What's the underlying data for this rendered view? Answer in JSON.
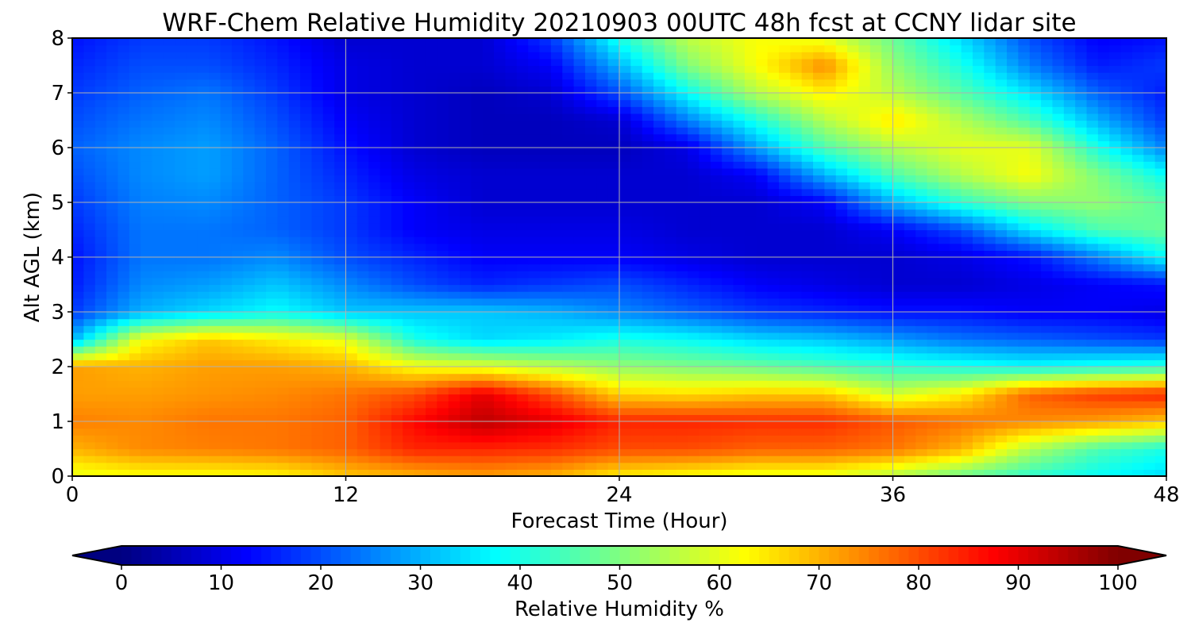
{
  "chart_data": {
    "type": "heatmap",
    "title": "WRF-Chem Relative Humidity 20210903 00UTC 48h fcst at CCNY lidar site",
    "xlabel": "Forecast Time (Hour)",
    "ylabel": "Alt AGL (km)",
    "xlim": [
      0,
      48
    ],
    "ylim": [
      0,
      8
    ],
    "x_ticks": [
      "0",
      "12",
      "24",
      "36",
      "48"
    ],
    "y_ticks": [
      "0",
      "1",
      "2",
      "3",
      "4",
      "5",
      "6",
      "7",
      "8"
    ],
    "grid": true,
    "colorbar": {
      "label": "Relative Humidity %",
      "range": [
        0,
        100
      ],
      "ticks": [
        "0",
        "10",
        "20",
        "30",
        "40",
        "50",
        "60",
        "70",
        "80",
        "90",
        "100"
      ],
      "extend": "both",
      "colormap": "jet"
    },
    "x": [
      0,
      3,
      6,
      9,
      12,
      15,
      18,
      21,
      24,
      27,
      30,
      33,
      36,
      39,
      42,
      45,
      48
    ],
    "y": [
      0,
      0.5,
      1,
      1.5,
      2,
      2.5,
      3,
      3.5,
      4,
      4.5,
      5,
      5.5,
      6,
      6.5,
      7,
      7.5,
      8
    ],
    "values": [
      [
        60,
        62,
        62,
        63,
        68,
        70,
        72,
        70,
        64,
        62,
        60,
        60,
        55,
        48,
        42,
        38,
        34
      ],
      [
        70,
        74,
        75,
        76,
        78,
        84,
        84,
        83,
        80,
        80,
        78,
        78,
        76,
        70,
        55,
        45,
        40
      ],
      [
        75,
        74,
        76,
        76,
        78,
        87,
        94,
        90,
        84,
        84,
        83,
        83,
        79,
        76,
        74,
        72,
        68
      ],
      [
        72,
        72,
        73,
        74,
        76,
        80,
        90,
        80,
        67,
        66,
        68,
        68,
        58,
        64,
        78,
        82,
        84
      ],
      [
        72,
        70,
        72,
        72,
        70,
        62,
        60,
        56,
        52,
        50,
        48,
        45,
        42,
        40,
        38,
        40,
        42
      ],
      [
        30,
        62,
        68,
        64,
        60,
        40,
        34,
        36,
        40,
        38,
        34,
        32,
        28,
        24,
        22,
        20,
        18
      ],
      [
        18,
        30,
        34,
        38,
        32,
        32,
        32,
        30,
        26,
        22,
        18,
        16,
        14,
        14,
        12,
        12,
        10
      ],
      [
        15,
        26,
        28,
        32,
        26,
        20,
        16,
        18,
        20,
        16,
        12,
        10,
        8,
        8,
        10,
        12,
        14
      ],
      [
        14,
        24,
        24,
        26,
        20,
        16,
        12,
        12,
        12,
        10,
        8,
        8,
        8,
        10,
        14,
        25,
        38
      ],
      [
        16,
        24,
        24,
        22,
        18,
        12,
        10,
        10,
        10,
        8,
        8,
        8,
        12,
        20,
        35,
        45,
        48
      ],
      [
        18,
        25,
        26,
        22,
        18,
        12,
        8,
        8,
        8,
        8,
        8,
        12,
        30,
        42,
        50,
        52,
        46
      ],
      [
        20,
        26,
        28,
        22,
        16,
        10,
        8,
        8,
        8,
        8,
        12,
        30,
        45,
        55,
        62,
        50,
        38
      ],
      [
        22,
        26,
        28,
        22,
        14,
        8,
        6,
        6,
        6,
        10,
        28,
        45,
        55,
        60,
        60,
        40,
        25
      ],
      [
        20,
        24,
        26,
        20,
        12,
        8,
        6,
        6,
        8,
        25,
        40,
        55,
        65,
        55,
        45,
        30,
        18
      ],
      [
        18,
        22,
        24,
        18,
        10,
        8,
        6,
        8,
        20,
        38,
        55,
        64,
        56,
        46,
        35,
        22,
        15
      ],
      [
        16,
        20,
        20,
        16,
        10,
        8,
        8,
        12,
        30,
        50,
        62,
        74,
        52,
        40,
        25,
        15,
        18
      ],
      [
        14,
        18,
        18,
        14,
        8,
        8,
        8,
        18,
        40,
        56,
        62,
        60,
        48,
        34,
        20,
        12,
        14
      ]
    ]
  }
}
